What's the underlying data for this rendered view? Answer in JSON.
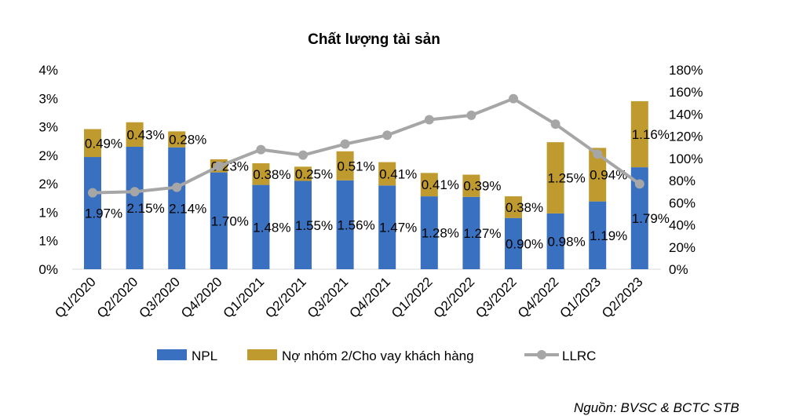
{
  "chart_data": {
    "type": "bar",
    "title": "Chất lượng tài sản",
    "categories": [
      "Q1/2020",
      "Q2/2020",
      "Q3/2020",
      "Q4/2020",
      "Q1/2021",
      "Q2/2021",
      "Q3/2021",
      "Q4/2021",
      "Q1/2022",
      "Q2/2022",
      "Q3/2022",
      "Q4/2022",
      "Q1/2023",
      "Q2/2023"
    ],
    "series": [
      {
        "name": "NPL",
        "kind": "stacked-bar",
        "axis": "left",
        "color": "#3a70c0",
        "values": [
          1.97,
          2.15,
          2.14,
          1.7,
          1.48,
          1.55,
          1.56,
          1.47,
          1.28,
          1.27,
          0.9,
          0.98,
          1.19,
          1.79
        ],
        "labels": [
          "1.97%",
          "2.15%",
          "2.14%",
          "1.70%",
          "1.48%",
          "1.55%",
          "1.56%",
          "1.47%",
          "1.28%",
          "1.27%",
          "0.90%",
          "0.98%",
          "1.19%",
          "1.79%"
        ]
      },
      {
        "name": "Nợ nhóm 2/Cho vay khách hàng",
        "kind": "stacked-bar",
        "axis": "left",
        "color": "#bf9a2e",
        "values": [
          0.49,
          0.43,
          0.28,
          0.23,
          0.38,
          0.25,
          0.51,
          0.41,
          0.41,
          0.39,
          0.38,
          1.25,
          0.94,
          1.16
        ],
        "labels": [
          "0.49%",
          "0.43%",
          "0.28%",
          "0.23%",
          "0.38%",
          "0.25%",
          "0.51%",
          "0.41%",
          "0.41%",
          "0.39%",
          "0.38%",
          "1.25%",
          "0.94%",
          "1.16%"
        ]
      },
      {
        "name": "LLRC",
        "kind": "line",
        "axis": "right",
        "color": "#a6a6a6",
        "values": [
          69,
          70,
          74,
          93,
          108,
          103,
          113,
          121,
          135,
          139,
          154,
          131,
          104,
          77
        ]
      }
    ],
    "left_axis": {
      "ylim": [
        0,
        3.5
      ],
      "ticks": [
        0,
        0.5,
        1,
        1.5,
        2,
        2.5,
        3,
        3.5
      ],
      "tick_labels": [
        "0%",
        "1%",
        "1%",
        "2%",
        "2%",
        "3%",
        "3%",
        "4%"
      ]
    },
    "right_axis": {
      "ylim": [
        0,
        180
      ],
      "ticks": [
        0,
        20,
        40,
        60,
        80,
        100,
        120,
        140,
        160,
        180
      ],
      "tick_labels": [
        "0%",
        "20%",
        "40%",
        "60%",
        "80%",
        "100%",
        "120%",
        "140%",
        "160%",
        "180%"
      ]
    },
    "grid": false,
    "legend": "bottom",
    "source": "Nguồn: BVSC & BCTC STB"
  }
}
